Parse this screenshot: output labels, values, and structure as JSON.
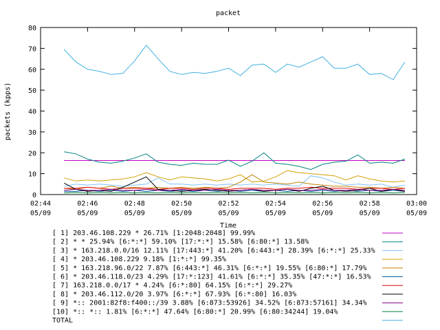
{
  "chart_data": {
    "type": "line",
    "title": "packet",
    "xlabel": "Time",
    "ylabel": "packets (kpps)",
    "ylim": [
      0,
      80
    ],
    "yticks": [
      "0",
      "10",
      "20",
      "30",
      "40",
      "50",
      "60",
      "70",
      "80"
    ],
    "xlim": [
      "02:44",
      "03:00"
    ],
    "xticks": [
      {
        "time": "02:44",
        "date": "05/09"
      },
      {
        "time": "02:46",
        "date": "05/09"
      },
      {
        "time": "02:48",
        "date": "05/09"
      },
      {
        "time": "02:50",
        "date": "05/09"
      },
      {
        "time": "02:52",
        "date": "05/09"
      },
      {
        "time": "02:54",
        "date": "05/09"
      },
      {
        "time": "02:56",
        "date": "05/09"
      },
      {
        "time": "02:58",
        "date": "05/09"
      },
      {
        "time": "03:00",
        "date": "05/09"
      }
    ],
    "grid": false,
    "legend_position": "below",
    "x": [
      "02:45",
      "02:45:30",
      "02:46",
      "02:46:30",
      "02:47",
      "02:47:30",
      "02:48",
      "02:48:30",
      "02:49",
      "02:49:30",
      "02:50",
      "02:50:30",
      "02:51",
      "02:51:30",
      "02:52",
      "02:52:30",
      "02:53",
      "02:53:30",
      "02:54",
      "02:54:30",
      "02:55",
      "02:55:30",
      "02:56",
      "02:56:30",
      "02:57",
      "02:57:30",
      "02:58",
      "02:58:30",
      "02:59",
      "02:59:30"
    ],
    "series": [
      {
        "name": "[ 1] 203.46.108.229 * 26.71%  [1:2048:2048] 99.99%",
        "color": "#c000c0",
        "values": [
          16.3,
          16.3,
          16.3,
          16.3,
          16.3,
          16.3,
          16.3,
          16.3,
          16.3,
          16.3,
          16.3,
          16.3,
          16.3,
          16.3,
          16.3,
          16.3,
          16.3,
          16.3,
          16.3,
          16.3,
          16.3,
          16.3,
          16.3,
          16.3,
          16.3,
          16.3,
          16.3,
          16.3,
          16.3,
          16.3
        ]
      },
      {
        "name": "[ 2] * * 25.94%  [6:*:*] 59.10% [17:*:*] 15.58% [6:80:*] 13.58%",
        "color": "#008080",
        "values": [
          20.5,
          19.5,
          17,
          15.5,
          15,
          16,
          17.5,
          19.5,
          15.5,
          14.5,
          14,
          15,
          14.5,
          14.5,
          16.5,
          13.5,
          16,
          20,
          15,
          14.5,
          13.5,
          12,
          14.5,
          15.5,
          16,
          19,
          15,
          15.5,
          15,
          17
        ]
      },
      {
        "name": "[ 3] * 163.218.0.0/16 12.11%  [17:443:*] 41.20% [6:443:*] 28.39% [6:*:*] 25.33%",
        "color": "#80c0ff",
        "values": [
          4,
          5,
          4.5,
          5,
          4.5,
          4,
          4.5,
          5,
          8,
          5,
          5,
          4.5,
          5,
          4.5,
          5,
          4.5,
          5,
          4.5,
          5,
          4.5,
          4,
          9,
          8,
          6,
          4.5,
          5,
          4.5,
          5,
          3.5,
          4.5
        ]
      },
      {
        "name": "[ 4] * 203.46.108.229 9.18%  [1:*:*] 99.35%",
        "color": "#d4a000",
        "values": [
          8,
          6.5,
          7,
          6.5,
          7,
          7.5,
          8.5,
          10.5,
          8.5,
          7,
          8.5,
          8,
          7.5,
          6.5,
          7.5,
          9.5,
          6,
          6.5,
          8.5,
          11.5,
          10.5,
          10,
          9.5,
          9,
          7,
          9,
          7.5,
          6.5,
          6,
          6.5
        ]
      },
      {
        "name": "[ 5] * 163.218.96.0/22 7.87%  [6:443:*] 46.31% [6:*:*] 19.55% [6:80:*] 17.79%",
        "color": "#c08000",
        "values": [
          3,
          2.5,
          3.5,
          3,
          4,
          3,
          3.5,
          3,
          3.5,
          3,
          3.5,
          3,
          3.5,
          3,
          3.5,
          6,
          9.5,
          6,
          5.5,
          5,
          6,
          5,
          4.5,
          4,
          4,
          3.5,
          3.5,
          3,
          3.5,
          3
        ]
      },
      {
        "name": "[ 6] * 203.46.118.0/23 4.29%  [17:*:123] 41.61% [6:*:*] 35.35% [47:*:*] 16.53%",
        "color": "#0060a0",
        "values": [
          1.5,
          1.5,
          2,
          1.5,
          2,
          1.5,
          2,
          1.5,
          2,
          1.5,
          2,
          1.5,
          2,
          1.5,
          2,
          1.5,
          2,
          1.5,
          2,
          1.5,
          2,
          1.5,
          2,
          1.5,
          2,
          1.5,
          2,
          1.5,
          2,
          1.5
        ]
      },
      {
        "name": "[ 7] 163.218.0.0/17 * 4.24%  [6:*:80] 64.15% [6:*:*] 29.27%",
        "color": "#e00000",
        "values": [
          3,
          3,
          3.5,
          3,
          2.5,
          3,
          3,
          3,
          2.5,
          3,
          3,
          2.5,
          3,
          3,
          2.5,
          3,
          3,
          3,
          2.5,
          3,
          3,
          3.5,
          3,
          3,
          3,
          2.5,
          3,
          3,
          2.5,
          3
        ]
      },
      {
        "name": "[ 8] * 203.46.112.0/20 3.97%  [6:*:*] 67.93% [6:*:80] 16.03%",
        "color": "#000000",
        "values": [
          5.5,
          2.5,
          1.5,
          2,
          1.5,
          3.5,
          6,
          8.5,
          2.5,
          2,
          1.5,
          2,
          2.5,
          2,
          1.5,
          2,
          2.5,
          1.5,
          2,
          2.5,
          1.5,
          3,
          4,
          2,
          1.5,
          2,
          3,
          1.5,
          2.5,
          1.5
        ]
      },
      {
        "name": "[ 9] *:: 2001:82f8:f400::/39 3.88%  [6:873:53926] 34.52% [6:873:57161] 34.34%",
        "color": "#800080",
        "values": [
          2,
          2.5,
          2,
          2,
          2.5,
          2,
          2,
          2.5,
          2,
          2,
          2.5,
          2,
          2,
          2.5,
          2,
          2,
          2.5,
          2,
          2,
          2.5,
          2,
          2,
          2.5,
          2,
          2,
          2.5,
          2,
          2,
          2.5,
          2
        ]
      },
      {
        "name": "[10] *:: *:: 1.81%  [6:*:*] 47.64% [6:80:*] 20.99% [6:80:34244] 19.04%",
        "color": "#008040",
        "values": [
          0.8,
          1,
          0.8,
          1,
          0.8,
          1,
          0.8,
          1,
          0.8,
          1,
          0.8,
          1,
          0.8,
          1,
          0.8,
          1,
          0.8,
          1,
          0.8,
          1,
          0.8,
          1,
          0.8,
          1,
          0.8,
          1,
          0.8,
          1,
          0.8,
          1
        ]
      },
      {
        "name": "TOTAL",
        "color": "#40b0e0",
        "values": [
          69.5,
          63.5,
          60,
          59,
          57.5,
          58,
          64,
          71.5,
          65,
          59,
          57.5,
          58.5,
          58,
          59,
          60.5,
          57,
          62,
          62.5,
          58.5,
          62.5,
          61,
          63.5,
          66,
          60.5,
          60.5,
          62.5,
          57.5,
          58,
          55,
          63.5
        ]
      }
    ]
  }
}
